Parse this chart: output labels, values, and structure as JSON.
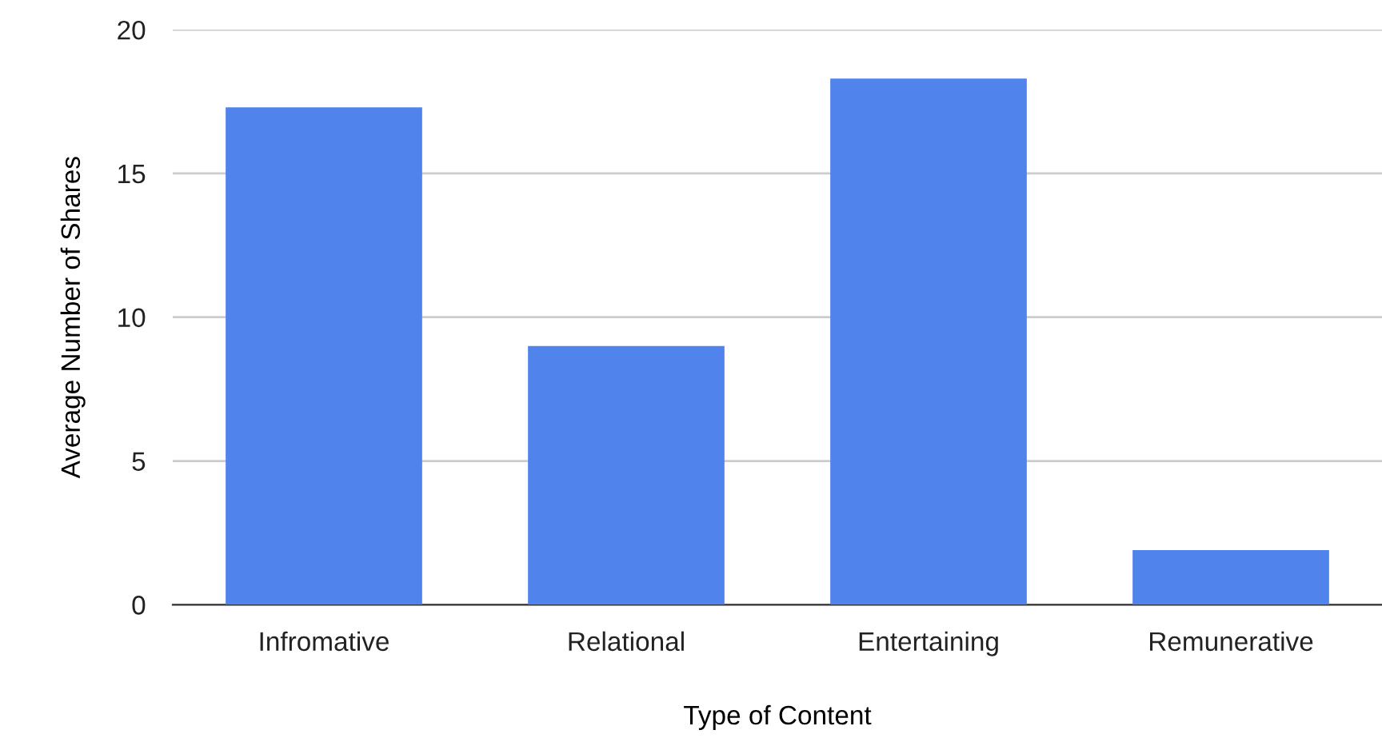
{
  "chart_data": {
    "type": "bar",
    "xlabel": "Type of Content",
    "ylabel": "Average Number of Shares",
    "categories": [
      "Infromative",
      "Relational",
      "Entertaining",
      "Remunerative"
    ],
    "values": [
      17.3,
      9.0,
      18.3,
      1.9
    ],
    "color": "#5183ec",
    "ylim": [
      0,
      20
    ],
    "yticks": [
      0,
      5,
      10,
      15,
      20
    ],
    "grid": "y"
  }
}
